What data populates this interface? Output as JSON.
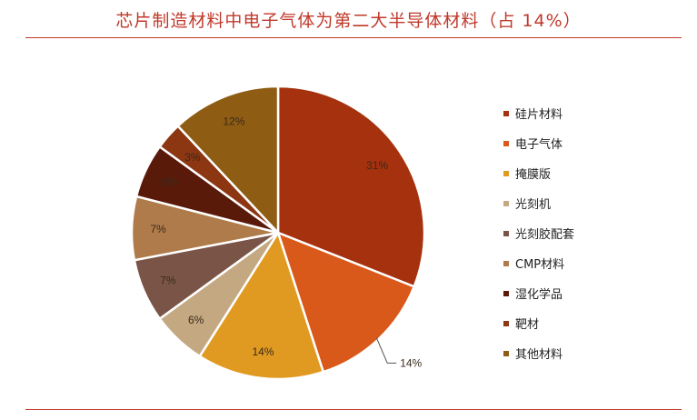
{
  "title": "芯片制造材料中电子气体为第二大半导体材料（占 14%）",
  "chart_data": {
    "type": "pie",
    "title": "",
    "unit": "%",
    "categories": [
      "硅片材料",
      "电子气体",
      "掩膜版",
      "光刻机",
      "光刻胶配套",
      "CMP材料",
      "湿化学品",
      "靶材",
      "其他材料"
    ],
    "values": [
      31,
      14,
      14,
      6,
      7,
      7,
      6,
      3,
      12
    ],
    "colors": [
      "#a5310e",
      "#d9591a",
      "#e09a22",
      "#c4a882",
      "#7a5547",
      "#b07b4a",
      "#5a1a0a",
      "#8c3612",
      "#8e5c12"
    ],
    "legend": "right"
  }
}
